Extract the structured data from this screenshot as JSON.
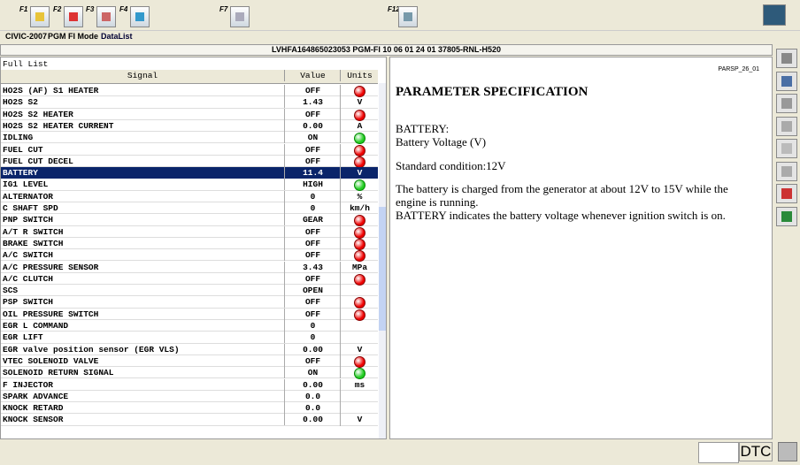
{
  "toolbar": {
    "keys": [
      "F1",
      "F2",
      "F3",
      "F4",
      "F7",
      "F12"
    ]
  },
  "breadcrumb": [
    "CIVIC-2007",
    "PGM FI Mode",
    "DataList"
  ],
  "header": "LVHFA164865023053  PGM-FI  10 06 01 24 01  37805-RNL-H520",
  "list": {
    "title": "Full List",
    "columns": [
      "Signal",
      "Value",
      "Units"
    ],
    "rows": [
      {
        "signal": "HO2S (AF) S1 HEATER",
        "value": "OFF",
        "lamp": "red"
      },
      {
        "signal": "HO2S S2",
        "value": "1.43",
        "unit": "V"
      },
      {
        "signal": "HO2S S2 HEATER",
        "value": "OFF",
        "lamp": "red"
      },
      {
        "signal": "HO2S S2 HEATER CURRENT",
        "value": "0.00",
        "unit": "A"
      },
      {
        "signal": "IDLING",
        "value": "ON",
        "lamp": "green"
      },
      {
        "signal": "FUEL CUT",
        "value": "OFF",
        "lamp": "red"
      },
      {
        "signal": "FUEL CUT DECEL",
        "value": "OFF",
        "lamp": "red"
      },
      {
        "signal": "BATTERY",
        "value": "11.4",
        "unit": "V",
        "selected": true
      },
      {
        "signal": "IG1 LEVEL",
        "value": "HIGH",
        "lamp": "green"
      },
      {
        "signal": "ALTERNATOR",
        "value": "0",
        "unit": "%"
      },
      {
        "signal": "C SHAFT SPD",
        "value": "0",
        "unit": "km/h"
      },
      {
        "signal": "PNP SWITCH",
        "value": "GEAR",
        "lamp": "red"
      },
      {
        "signal": "A/T R SWITCH",
        "value": "OFF",
        "lamp": "red"
      },
      {
        "signal": "BRAKE SWITCH",
        "value": "OFF",
        "lamp": "red"
      },
      {
        "signal": "A/C SWITCH",
        "value": "OFF",
        "lamp": "red"
      },
      {
        "signal": "A/C PRESSURE SENSOR",
        "value": "3.43",
        "unit": "MPa"
      },
      {
        "signal": "A/C CLUTCH",
        "value": "OFF",
        "lamp": "red"
      },
      {
        "signal": "SCS",
        "value": "OPEN"
      },
      {
        "signal": "PSP SWITCH",
        "value": "OFF",
        "lamp": "red"
      },
      {
        "signal": "OIL PRESSURE SWITCH",
        "value": "OFF",
        "lamp": "red"
      },
      {
        "signal": "EGR L COMMAND",
        "value": "0"
      },
      {
        "signal": "EGR LIFT",
        "value": "0"
      },
      {
        "signal": "EGR valve position sensor (EGR VLS)",
        "value": "0.00",
        "unit": "V"
      },
      {
        "signal": "VTEC SOLENOID VALVE",
        "value": "OFF",
        "lamp": "red"
      },
      {
        "signal": "SOLENOID RETURN SIGNAL",
        "value": "ON",
        "lamp": "green"
      },
      {
        "signal": "F INJECTOR",
        "value": "0.00",
        "unit": "ms"
      },
      {
        "signal": "SPARK ADVANCE",
        "value": "0.0"
      },
      {
        "signal": "KNOCK RETARD",
        "value": "0.0"
      },
      {
        "signal": "KNOCK SENSOR",
        "value": "0.00",
        "unit": "V"
      }
    ]
  },
  "spec": {
    "code": "PARSP_26_01",
    "title": "PARAMETER SPECIFICATION",
    "name": "BATTERY:",
    "description": "Battery Voltage (V)",
    "standard": "Standard condition:12V",
    "paragraphs": [
      "The battery is charged from the generator at about 12V to 15V while the engine is running.",
      "BATTERY indicates the battery voltage whenever ignition switch is on."
    ]
  },
  "status_bar": {
    "dtc": "DTC"
  }
}
